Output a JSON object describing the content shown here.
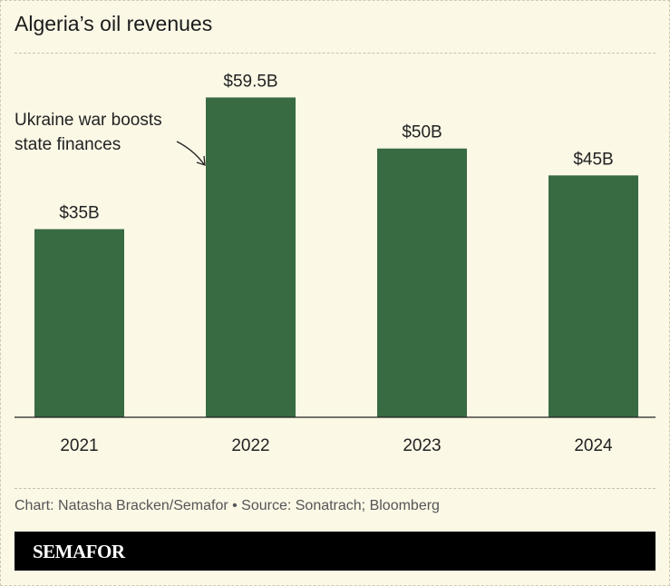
{
  "chart_data": {
    "type": "bar",
    "title": "Algeria’s oil revenues",
    "categories": [
      "2021",
      "2022",
      "2023",
      "2024"
    ],
    "values": [
      35,
      59.5,
      50,
      45
    ],
    "data_labels": [
      "$35B",
      "$59.5B",
      "$50B",
      "$45B"
    ],
    "xlabel": "",
    "ylabel": "",
    "ylim": [
      0,
      67
    ],
    "grid": false,
    "bar_color": "#386b42",
    "annotation": {
      "lines": [
        "Ukraine war boosts",
        "state finances"
      ],
      "target": "2022"
    }
  },
  "footer": {
    "credit": "Chart: Natasha Bracken/Semafor • Source: Sonatrach; Bloomberg",
    "brand": "SEMAFOR"
  },
  "colors": {
    "background": "#fbf8e6",
    "bar": "#386b42",
    "brand_bar": "#000000"
  }
}
